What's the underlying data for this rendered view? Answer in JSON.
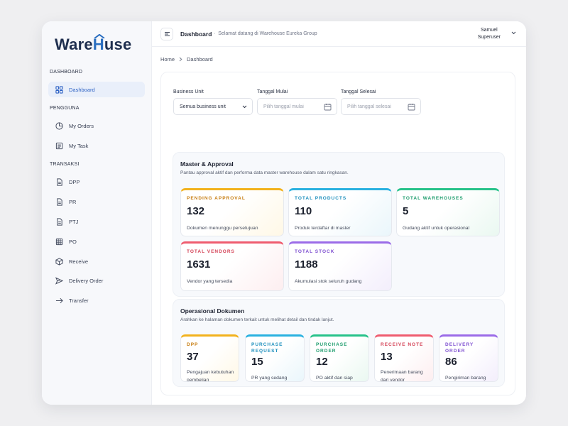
{
  "brand": {
    "logo_pre": "Ware",
    "logo_h": "H",
    "logo_post": "use"
  },
  "sidebar": {
    "sections": {
      "dashboard": "DASHBOARD",
      "pengguna": "PENGGUNA",
      "transaksi": "TRANSAKSI"
    },
    "items": [
      {
        "label": "Dashboard",
        "icon": "grid-icon"
      },
      {
        "label": "My Orders",
        "icon": "pie-chart-icon"
      },
      {
        "label": "My Task",
        "icon": "list-icon"
      },
      {
        "label": "DPP",
        "icon": "document-icon"
      },
      {
        "label": "PR",
        "icon": "document-icon"
      },
      {
        "label": "PTJ",
        "icon": "document-icon"
      },
      {
        "label": "PO",
        "icon": "table-icon"
      },
      {
        "label": "Receive",
        "icon": "box-icon"
      },
      {
        "label": "Delivery Order",
        "icon": "send-icon"
      },
      {
        "label": "Transfer",
        "icon": "arrow-right-icon"
      }
    ]
  },
  "header": {
    "title": "Dashboard",
    "separator": "·",
    "subtitle": "Selamat datang di Warehouse Eureka Group",
    "user_name": "Samuel",
    "user_role": "Superuser"
  },
  "breadcrumb": {
    "home": "Home",
    "current": "Dashboard"
  },
  "filters": {
    "business_unit": {
      "label": "Business Unit",
      "value": "Semua business unit"
    },
    "start_date": {
      "label": "Tanggal Mulai",
      "placeholder": "Pilih tanggal mulai"
    },
    "end_date": {
      "label": "Tanggal Selesai",
      "placeholder": "Pilih tanggal selesai"
    }
  },
  "master": {
    "title": "Master & Approval",
    "subtitle": "Pantau approval aktif dan performa data master warehouse dalam satu ringkasan.",
    "cards": [
      {
        "title": "PENDING APPROVAL",
        "value": "132",
        "desc": "Dokumen menunggu persetujuan",
        "color": "#f2b21d",
        "title_color": "#c77d10",
        "tint": "#fff8e6"
      },
      {
        "title": "TOTAL PRODUCTS",
        "value": "110",
        "desc": "Produk terdaftar di master",
        "color": "#2ab1e0",
        "title_color": "#1d8fbd",
        "tint": "#eaf6fb"
      },
      {
        "title": "TOTAL WAREHOUSES",
        "value": "5",
        "desc": "Gudang aktif untuk operasional",
        "color": "#27c28a",
        "title_color": "#1c9c6c",
        "tint": "#eaf8f1"
      },
      {
        "title": "TOTAL VENDORS",
        "value": "1631",
        "desc": "Vendor yang tersedia",
        "color": "#ef5c6f",
        "title_color": "#d44357",
        "tint": "#fdeef0"
      },
      {
        "title": "TOTAL STOCK",
        "value": "1188",
        "desc": "Akumulasi stok seluruh gudang",
        "color": "#9b6be8",
        "title_color": "#7e4fd0",
        "tint": "#f3eefc"
      }
    ]
  },
  "operational": {
    "title": "Operasional Dokumen",
    "subtitle": "Arahkan ke halaman dokumen terkait untuk melihat detail dan tindak lanjut.",
    "cards": [
      {
        "title": "DPP",
        "value": "37",
        "desc": "Pengajuan kebutuhan pembelian",
        "color": "#f2b21d",
        "title_color": "#c77d10",
        "tint": "#fff8e6"
      },
      {
        "title": "PURCHASE REQUEST",
        "value": "15",
        "desc": "PR yang sedang berjalan",
        "color": "#2ab1e0",
        "title_color": "#1d8fbd",
        "tint": "#eaf6fb"
      },
      {
        "title": "PURCHASE ORDER",
        "value": "12",
        "desc": "PO aktif dan siap dipantau",
        "color": "#27c28a",
        "title_color": "#1c9c6c",
        "tint": "#eaf8f1"
      },
      {
        "title": "RECEIVE NOTE",
        "value": "13",
        "desc": "Penerimaan barang dari vendor",
        "color": "#ef5c6f",
        "title_color": "#d44357",
        "tint": "#fdeef0"
      },
      {
        "title": "DELIVERY ORDER",
        "value": "86",
        "desc": "Pengiriman barang internal",
        "color": "#9b6be8",
        "title_color": "#7e4fd0",
        "tint": "#f3eefc"
      }
    ]
  }
}
